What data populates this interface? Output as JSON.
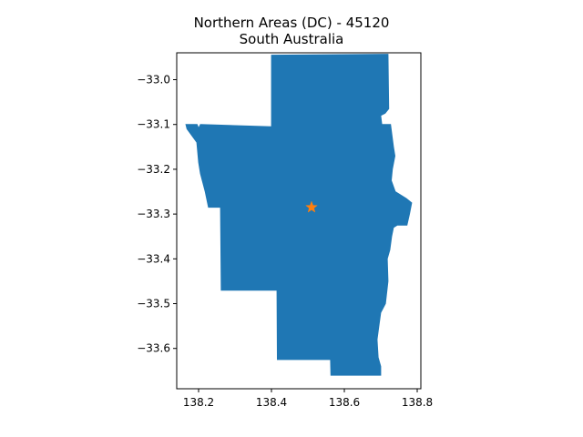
{
  "map": {
    "title_line1": "Northern Areas (DC) - 45120",
    "title_line2": "South Australia",
    "region_color": "#1f77b4",
    "marker_color": "#ff7f0e",
    "marker_icon": "star-icon",
    "marker_lon": 138.51,
    "marker_lat": -33.285,
    "xlim": [
      138.14,
      138.81
    ],
    "ylim": [
      -33.69,
      -32.94
    ],
    "x_ticks": [
      {
        "value": 138.2,
        "label": "138.2"
      },
      {
        "value": 138.4,
        "label": "138.4"
      },
      {
        "value": 138.6,
        "label": "138.6"
      },
      {
        "value": 138.8,
        "label": "138.8"
      }
    ],
    "y_ticks": [
      {
        "value": -33.0,
        "label": "−33.0"
      },
      {
        "value": -33.1,
        "label": "−33.1"
      },
      {
        "value": -33.2,
        "label": "−33.2"
      },
      {
        "value": -33.3,
        "label": "−33.3"
      },
      {
        "value": -33.4,
        "label": "−33.4"
      },
      {
        "value": -33.5,
        "label": "−33.5"
      },
      {
        "value": -33.6,
        "label": "−33.6"
      }
    ],
    "boundary": [
      [
        138.4,
        -32.945
      ],
      [
        138.72,
        -32.943
      ],
      [
        138.722,
        -33.065
      ],
      [
        138.712,
        -33.075
      ],
      [
        138.7,
        -33.08
      ],
      [
        138.703,
        -33.1
      ],
      [
        138.727,
        -33.1
      ],
      [
        138.735,
        -33.15
      ],
      [
        138.739,
        -33.17
      ],
      [
        138.732,
        -33.2
      ],
      [
        138.729,
        -33.225
      ],
      [
        138.74,
        -33.25
      ],
      [
        138.77,
        -33.265
      ],
      [
        138.785,
        -33.275
      ],
      [
        138.779,
        -33.3
      ],
      [
        138.772,
        -33.325
      ],
      [
        138.745,
        -33.325
      ],
      [
        138.735,
        -33.33
      ],
      [
        138.73,
        -33.35
      ],
      [
        138.725,
        -33.38
      ],
      [
        138.718,
        -33.4
      ],
      [
        138.72,
        -33.45
      ],
      [
        138.713,
        -33.5
      ],
      [
        138.7,
        -33.52
      ],
      [
        138.695,
        -33.55
      ],
      [
        138.69,
        -33.58
      ],
      [
        138.693,
        -33.62
      ],
      [
        138.7,
        -33.64
      ],
      [
        138.7,
        -33.66
      ],
      [
        138.563,
        -33.66
      ],
      [
        138.562,
        -33.625
      ],
      [
        138.416,
        -33.625
      ],
      [
        138.415,
        -33.47
      ],
      [
        138.262,
        -33.47
      ],
      [
        138.26,
        -33.285
      ],
      [
        138.227,
        -33.285
      ],
      [
        138.218,
        -33.25
      ],
      [
        138.205,
        -33.21
      ],
      [
        138.2,
        -33.185
      ],
      [
        138.195,
        -33.14
      ],
      [
        138.168,
        -33.11
      ],
      [
        138.165,
        -33.1
      ],
      [
        138.196,
        -33.1
      ],
      [
        138.2,
        -33.108
      ],
      [
        138.205,
        -33.1
      ],
      [
        138.4,
        -33.105
      ]
    ]
  }
}
